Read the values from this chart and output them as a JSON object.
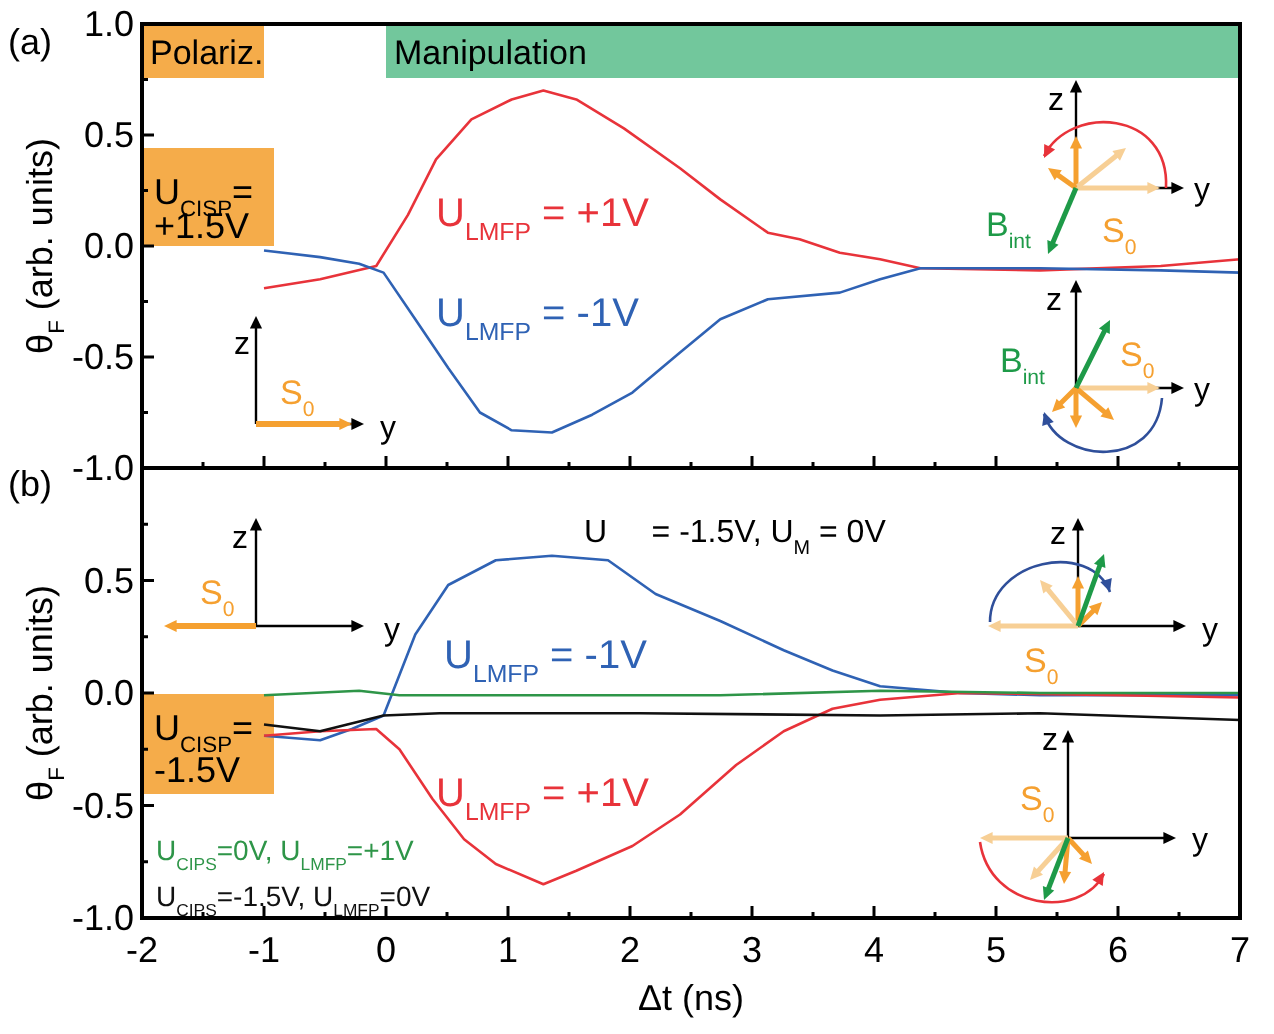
{
  "chart_data": [
    {
      "type": "line",
      "ylabel": "θ$_{F}$ (arb. units)",
      "xlim": [
        -2,
        7
      ],
      "ylim": [
        -1,
        1
      ],
      "xticks": [
        -2,
        {
          "value": -1.5,
          "label": null
        },
        -1,
        {
          "value": -0.5,
          "label": null
        },
        0,
        {
          "value": 0.5,
          "label": null
        },
        1,
        {
          "value": 1.5,
          "label": null
        },
        2,
        {
          "value": 2.5,
          "label": null
        },
        3,
        {
          "value": 3.5,
          "label": null
        },
        4,
        {
          "value": 4.5,
          "label": null
        },
        5,
        {
          "value": 5.5,
          "label": null
        },
        6,
        {
          "value": 6.5,
          "label": null
        },
        7
      ],
      "yticks": [
        {
          "value": -1,
          "label": "-1.0"
        },
        {
          "value": -0.75,
          "label": null
        },
        {
          "value": -0.5,
          "label": "-0.5"
        },
        {
          "value": -0.25,
          "label": null
        },
        {
          "value": 0,
          "label": "0.0"
        },
        {
          "value": 0.25,
          "label": null
        },
        {
          "value": 0.5,
          "label": "0.5"
        },
        {
          "value": 0.75,
          "label": null
        },
        {
          "value": 1,
          "label": "1.0"
        }
      ],
      "tick_labels": "y",
      "series": [
        {
          "name": "U$_{LMFP}$ = +1V",
          "color": "#e8333a",
          "x": [
            -1,
            -0.54,
            -0.08,
            0.18,
            0.41,
            0.7,
            1.03,
            1.29,
            1.56,
            1.95,
            2.41,
            2.74,
            3.13,
            3.39,
            3.72,
            4.05,
            4.38,
            5.36,
            6.35,
            7
          ],
          "values": [
            -0.19,
            -0.15,
            -0.09,
            0.14,
            0.39,
            0.57,
            0.66,
            0.7,
            0.66,
            0.53,
            0.35,
            0.21,
            0.06,
            0.03,
            -0.03,
            -0.06,
            -0.1,
            -0.11,
            -0.09,
            -0.06
          ]
        },
        {
          "name": "U$_{LMFP}$ = -1V",
          "color": "#2f62b4",
          "x": [
            -1,
            -0.54,
            -0.22,
            -0.02,
            0.24,
            0.51,
            0.77,
            1.03,
            1.36,
            1.69,
            2.02,
            2.41,
            2.74,
            3.13,
            3.72,
            4.05,
            4.38,
            5.36,
            6.35,
            7
          ],
          "values": [
            -0.02,
            -0.05,
            -0.08,
            -0.12,
            -0.33,
            -0.55,
            -0.75,
            -0.83,
            -0.84,
            -0.76,
            -0.66,
            -0.48,
            -0.33,
            -0.24,
            -0.21,
            -0.15,
            -0.1,
            -0.1,
            -0.11,
            -0.12
          ]
        }
      ],
      "bands": [
        {
          "axis": "x",
          "from": -2,
          "to": -1,
          "label": "Polariz.",
          "color": "#f5ac4a"
        },
        {
          "axis": "x",
          "from": 0,
          "to": 7,
          "label": "Manipulation",
          "color": "#72c79c"
        }
      ],
      "annotations": [
        "(a)",
        "U$_{CISP}$=",
        "+1.5V",
        "z",
        "y",
        "S$_{0}$",
        "z",
        "y",
        "B$_{int}$",
        "S$_{0}$",
        "z",
        "y",
        "B$_{int}$",
        "S$_{0}$"
      ]
    },
    {
      "type": "line",
      "xlabel": "Δt (ns)",
      "ylabel": "θ$_{F}$ (arb. units)",
      "xlim": [
        -2,
        7
      ],
      "ylim": [
        -1,
        1
      ],
      "xticks": [
        -2,
        {
          "value": -1.5,
          "label": null
        },
        -1,
        {
          "value": -0.5,
          "label": null
        },
        0,
        {
          "value": 0.5,
          "label": null
        },
        1,
        {
          "value": 1.5,
          "label": null
        },
        2,
        {
          "value": 2.5,
          "label": null
        },
        3,
        {
          "value": 3.5,
          "label": null
        },
        4,
        {
          "value": 4.5,
          "label": null
        },
        5,
        {
          "value": 5.5,
          "label": null
        },
        6,
        {
          "value": 6.5,
          "label": null
        },
        7
      ],
      "yticks": [
        {
          "value": -1,
          "label": "-1.0"
        },
        {
          "value": -0.75,
          "label": null
        },
        {
          "value": -0.5,
          "label": "-0.5"
        },
        {
          "value": -0.25,
          "label": null
        },
        {
          "value": 0,
          "label": "0.0"
        },
        {
          "value": 0.25,
          "label": null
        },
        {
          "value": 0.5,
          "label": "0.5"
        },
        {
          "value": 0.75,
          "label": null
        },
        {
          "value": 1,
          "label": null
        }
      ],
      "series": [
        {
          "name": "U$_{LMFP}$ = -1V",
          "color": "#2f62b4",
          "x": [
            -1,
            -0.54,
            -0.28,
            -0.02,
            0.24,
            0.51,
            0.9,
            1.36,
            1.82,
            2.21,
            2.74,
            3.26,
            3.66,
            4.05,
            4.71,
            5.36,
            7
          ],
          "values": [
            -0.19,
            -0.21,
            -0.16,
            -0.1,
            0.26,
            0.48,
            0.59,
            0.61,
            0.59,
            0.44,
            0.32,
            0.19,
            0.1,
            0.03,
            0,
            -0.01,
            -0.01
          ]
        },
        {
          "name": "U$_{LMFP}$ = +1V",
          "color": "#e8333a",
          "x": [
            -1,
            -0.54,
            -0.08,
            0.11,
            0.38,
            0.64,
            0.9,
            1.29,
            1.56,
            2.02,
            2.41,
            2.87,
            3.26,
            3.66,
            4.05,
            4.71,
            6.02,
            7
          ],
          "values": [
            -0.19,
            -0.17,
            -0.16,
            -0.25,
            -0.47,
            -0.65,
            -0.76,
            -0.85,
            -0.79,
            -0.68,
            -0.54,
            -0.32,
            -0.17,
            -0.07,
            -0.03,
            0,
            -0.01,
            -0.02
          ]
        },
        {
          "name": "U$_{CIPS}$=0V, U$_{LMFP}$=+1V",
          "color": "#2e9548",
          "x": [
            -1,
            -0.22,
            0.11,
            1.42,
            2.74,
            4.05,
            5.36,
            7
          ],
          "values": [
            -0.01,
            0.01,
            -0.01,
            -0.01,
            -0.01,
            0.01,
            0,
            0
          ]
        },
        {
          "name": "U$_{CIPS}$=-1.5V, U$_{LMFP}$=0V",
          "color": "#111111",
          "x": [
            -1,
            -0.54,
            -0.02,
            0.44,
            2.08,
            4.05,
            5.36,
            7
          ],
          "values": [
            -0.14,
            -0.17,
            -0.1,
            -0.09,
            -0.09,
            -0.1,
            -0.09,
            -0.12
          ]
        }
      ],
      "annotations": [
        "(b)",
        "U$_{CISP}$=",
        "-1.5V",
        "U     = -1.5V, U$_{M}$ = 0V",
        "z",
        "y",
        "S$_{0}$",
        "z",
        "y",
        "S$_{0}$",
        "z",
        "y",
        "S$_{0}$"
      ]
    }
  ]
}
